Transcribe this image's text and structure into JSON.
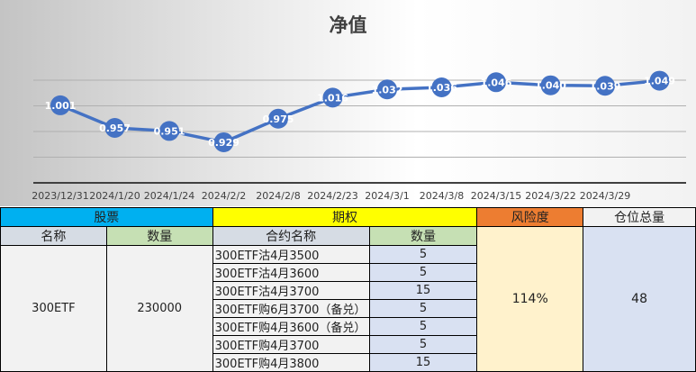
{
  "chart_data": {
    "type": "line",
    "title": "净值",
    "categories": [
      "2023/12/31",
      "2024/1/20",
      "2024/1/24",
      "2024/2/2",
      "2024/2/8",
      "2024/2/23",
      "2024/3/1",
      "2024/3/8",
      "2024/3/15",
      "2024/3/22",
      "2024/3/29",
      ""
    ],
    "values": [
      1.001,
      0.957,
      0.951,
      0.929,
      0.975,
      1.016,
      1.032,
      1.036,
      1.046,
      1.04,
      1.039,
      1.049
    ],
    "data_labels": [
      "1.001",
      "0.957",
      "0.951",
      "0.929",
      "0.975",
      "1.016",
      "1.032",
      "1.036",
      "1.046",
      "1.040",
      "1.039",
      "1.049"
    ],
    "ylim": [
      0.85,
      1.05
    ],
    "grid": true,
    "color": "#4472c4"
  },
  "table": {
    "stock_header": "股票",
    "option_header": "期权",
    "risk_header": "风险度",
    "position_header": "仓位总量",
    "name_col": "名称",
    "qty_col": "数量",
    "contract_col": "合约名称",
    "opt_qty_col": "数量",
    "stock_name": "300ETF",
    "stock_qty": "230000",
    "risk": "114%",
    "position": "48",
    "options": [
      {
        "name": "300ETF沽4月3500",
        "qty": "5"
      },
      {
        "name": "300ETF沽4月3600",
        "qty": "5"
      },
      {
        "name": "300ETF沽4月3700",
        "qty": "15"
      },
      {
        "name": "300ETF购6月3700（备兑）",
        "qty": "5"
      },
      {
        "name": "300ETF购4月3600（备兑）",
        "qty": "5"
      },
      {
        "name": "300ETF购4月3700",
        "qty": "5"
      },
      {
        "name": "300ETF购4月3800",
        "qty": "15"
      }
    ]
  }
}
